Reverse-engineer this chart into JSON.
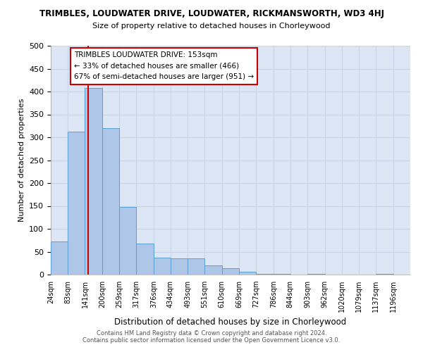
{
  "title": "TRIMBLES, LOUDWATER DRIVE, LOUDWATER, RICKMANSWORTH, WD3 4HJ",
  "subtitle": "Size of property relative to detached houses in Chorleywood",
  "xlabel": "Distribution of detached houses by size in Chorleywood",
  "ylabel": "Number of detached properties",
  "bar_color": "#aec6e8",
  "bar_edge_color": "#5a9fd4",
  "bg_color": "#dce6f5",
  "grid_color": "#c8d4e8",
  "bin_labels": [
    "24sqm",
    "83sqm",
    "141sqm",
    "200sqm",
    "259sqm",
    "317sqm",
    "376sqm",
    "434sqm",
    "493sqm",
    "551sqm",
    "610sqm",
    "669sqm",
    "727sqm",
    "786sqm",
    "844sqm",
    "903sqm",
    "962sqm",
    "1020sqm",
    "1079sqm",
    "1137sqm",
    "1196sqm"
  ],
  "bar_heights": [
    72,
    312,
    407,
    320,
    147,
    68,
    37,
    35,
    35,
    20,
    14,
    6,
    2,
    2,
    0,
    2,
    0,
    0,
    0,
    2,
    0
  ],
  "red_line_x": 153,
  "bin_edges": [
    24,
    83,
    141,
    200,
    259,
    317,
    376,
    434,
    493,
    551,
    610,
    669,
    727,
    786,
    844,
    903,
    962,
    1020,
    1079,
    1137,
    1196,
    1255
  ],
  "annotation_title": "TRIMBLES LOUDWATER DRIVE: 153sqm",
  "annotation_line1": "← 33% of detached houses are smaller (466)",
  "annotation_line2": "67% of semi-detached houses are larger (951) →",
  "ylim": [
    0,
    500
  ],
  "yticks": [
    0,
    50,
    100,
    150,
    200,
    250,
    300,
    350,
    400,
    450,
    500
  ],
  "footer1": "Contains HM Land Registry data © Crown copyright and database right 2024.",
  "footer2": "Contains public sector information licensed under the Open Government Licence v3.0."
}
